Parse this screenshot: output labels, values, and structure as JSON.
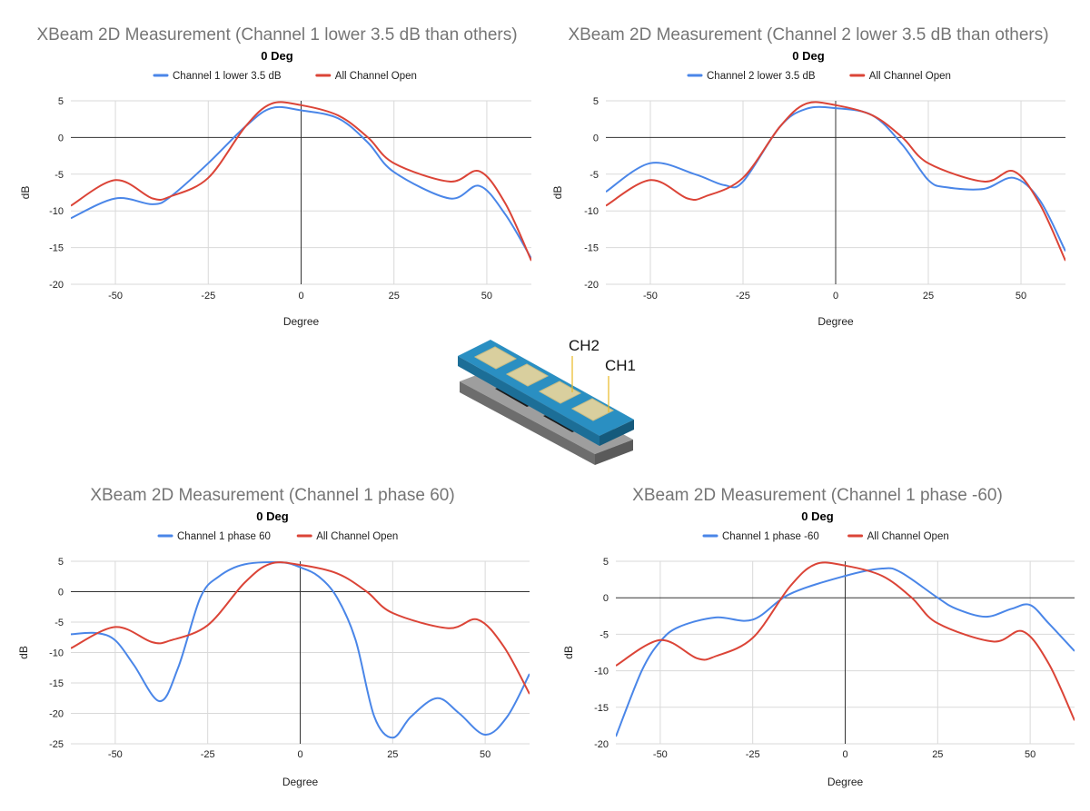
{
  "colors": {
    "series_blue": "#4a86e8",
    "series_red": "#db4437",
    "grid": "#d9d9d9",
    "axis": "#333333"
  },
  "chart_data": [
    {
      "type": "line",
      "title": "XBeam 2D Measurement (Channel 1 lower 3.5 dB than others)",
      "subtitle": "0 Deg",
      "xlabel": "Degree",
      "ylabel": "dB",
      "xlim": [
        -62,
        62
      ],
      "ylim": [
        -20,
        5
      ],
      "xticks": [
        -50,
        -25,
        0,
        25,
        50
      ],
      "yticks": [
        5,
        0,
        -5,
        -10,
        -15,
        -20
      ],
      "grid": true,
      "legend_position": "top",
      "series": [
        {
          "name": "Channel 1 lower 3.5 dB",
          "color": "#4a86e8",
          "x": [
            -62,
            -50,
            -40,
            -35,
            -25,
            -15,
            -8,
            0,
            10,
            18,
            25,
            40,
            48,
            55,
            62
          ],
          "y": [
            -11,
            -8.3,
            -9.1,
            -8,
            -3.5,
            1.5,
            4,
            3.7,
            2.6,
            -0.7,
            -4.7,
            -8.3,
            -6.6,
            -10.5,
            -16.5
          ]
        },
        {
          "name": "All Channel Open",
          "color": "#db4437",
          "x": [
            -62,
            -50,
            -40,
            -35,
            -25,
            -15,
            -8,
            0,
            10,
            18,
            25,
            40,
            48,
            55,
            62
          ],
          "y": [
            -9.3,
            -5.8,
            -8.3,
            -8,
            -5.5,
            1.5,
            4.6,
            4.4,
            3,
            0,
            -3.5,
            -6,
            -4.6,
            -9,
            -16.8
          ]
        }
      ]
    },
    {
      "type": "line",
      "title": "XBeam 2D Measurement (Channel 2 lower 3.5 dB than others)",
      "subtitle": "0 Deg",
      "xlabel": "Degree",
      "ylabel": "dB",
      "xlim": [
        -62,
        62
      ],
      "ylim": [
        -20,
        5
      ],
      "xticks": [
        -50,
        -25,
        0,
        25,
        50
      ],
      "yticks": [
        5,
        0,
        -5,
        -10,
        -15,
        -20
      ],
      "grid": true,
      "legend_position": "top",
      "series": [
        {
          "name": "Channel 2 lower 3.5 dB",
          "color": "#4a86e8",
          "x": [
            -62,
            -50,
            -38,
            -30,
            -25,
            -15,
            -8,
            0,
            10,
            18,
            25,
            30,
            40,
            48,
            55,
            62
          ],
          "y": [
            -7.4,
            -3.5,
            -5,
            -6.5,
            -6,
            1.5,
            3.9,
            4,
            3,
            -1,
            -5.8,
            -6.8,
            -7,
            -5.5,
            -8.5,
            -15.5
          ]
        },
        {
          "name": "All Channel Open",
          "color": "#db4437",
          "x": [
            -62,
            -50,
            -40,
            -35,
            -25,
            -15,
            -8,
            0,
            10,
            18,
            25,
            40,
            48,
            55,
            62
          ],
          "y": [
            -9.3,
            -5.8,
            -8.3,
            -8,
            -5.5,
            1.5,
            4.6,
            4.4,
            3,
            0,
            -3.5,
            -6,
            -4.6,
            -9,
            -16.8
          ]
        }
      ]
    },
    {
      "type": "line",
      "title": "XBeam 2D Measurement (Channel 1 phase 60)",
      "subtitle": "0 Deg",
      "xlabel": "Degree",
      "ylabel": "dB",
      "xlim": [
        -62,
        62
      ],
      "ylim": [
        -25,
        5
      ],
      "xticks": [
        -50,
        -25,
        0,
        25,
        50
      ],
      "yticks": [
        5,
        0,
        -5,
        -10,
        -15,
        -20,
        -25
      ],
      "grid": true,
      "legend_position": "top",
      "series": [
        {
          "name": "Channel 1 phase 60",
          "color": "#4a86e8",
          "x": [
            -62,
            -55,
            -50,
            -45,
            -38,
            -33,
            -27,
            -22,
            -15,
            -5,
            0,
            5,
            10,
            15,
            20,
            25,
            30,
            37,
            43,
            50,
            56,
            62
          ],
          "y": [
            -7,
            -6.8,
            -8,
            -12,
            -18,
            -12.5,
            -1,
            2.5,
            4.5,
            4.8,
            4,
            2.5,
            -1,
            -8,
            -20.5,
            -24,
            -20.5,
            -17.5,
            -20,
            -23.5,
            -20.5,
            -13.5
          ]
        },
        {
          "name": "All Channel Open",
          "color": "#db4437",
          "x": [
            -62,
            -50,
            -40,
            -35,
            -25,
            -15,
            -8,
            0,
            10,
            18,
            25,
            40,
            48,
            55,
            62
          ],
          "y": [
            -9.3,
            -5.8,
            -8.3,
            -8,
            -5.5,
            1.5,
            4.6,
            4.4,
            3,
            0,
            -3.5,
            -6,
            -4.6,
            -9,
            -16.8
          ]
        }
      ]
    },
    {
      "type": "line",
      "title": "XBeam 2D Measurement (Channel 1 phase -60)",
      "subtitle": "0 Deg",
      "xlabel": "Degree",
      "ylabel": "dB",
      "xlim": [
        -62,
        62
      ],
      "ylim": [
        -20,
        5
      ],
      "xticks": [
        -50,
        -25,
        0,
        25,
        50
      ],
      "yticks": [
        5,
        0,
        -5,
        -10,
        -15,
        -20
      ],
      "grid": true,
      "legend_position": "top",
      "series": [
        {
          "name": "Channel 1 phase -60",
          "color": "#4a86e8",
          "x": [
            -62,
            -55,
            -50,
            -45,
            -35,
            -25,
            -15,
            0,
            10,
            15,
            25,
            30,
            38,
            45,
            50,
            55,
            62
          ],
          "y": [
            -19,
            -10,
            -6,
            -4,
            -2.7,
            -3,
            0.5,
            3,
            4,
            3.5,
            0,
            -1.5,
            -2.6,
            -1.5,
            -1,
            -3.5,
            -7.3
          ]
        },
        {
          "name": "All Channel Open",
          "color": "#db4437",
          "x": [
            -62,
            -50,
            -40,
            -35,
            -25,
            -15,
            -8,
            0,
            10,
            18,
            25,
            40,
            48,
            55,
            62
          ],
          "y": [
            -9.3,
            -5.8,
            -8.3,
            -8,
            -5.5,
            1.5,
            4.6,
            4.4,
            3,
            0,
            -3.5,
            -6,
            -4.6,
            -9,
            -16.8
          ]
        }
      ]
    }
  ],
  "diagram": {
    "labels": [
      "CH2",
      "CH1"
    ]
  }
}
